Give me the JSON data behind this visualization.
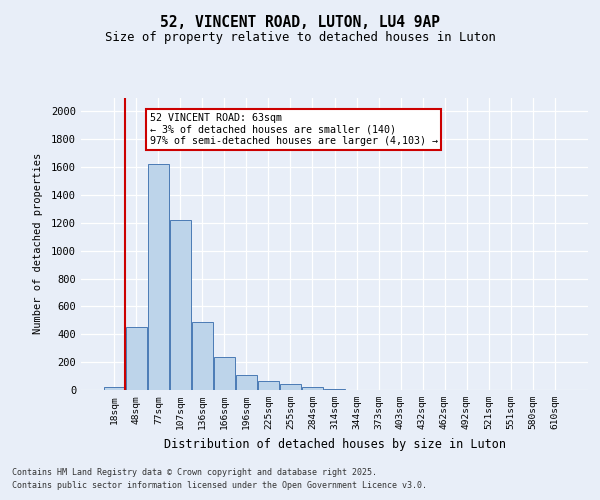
{
  "title_line1": "52, VINCENT ROAD, LUTON, LU4 9AP",
  "title_line2": "Size of property relative to detached houses in Luton",
  "xlabel": "Distribution of detached houses by size in Luton",
  "ylabel": "Number of detached properties",
  "categories": [
    "18sqm",
    "48sqm",
    "77sqm",
    "107sqm",
    "136sqm",
    "166sqm",
    "196sqm",
    "225sqm",
    "255sqm",
    "284sqm",
    "314sqm",
    "344sqm",
    "373sqm",
    "403sqm",
    "432sqm",
    "462sqm",
    "492sqm",
    "521sqm",
    "551sqm",
    "580sqm",
    "610sqm"
  ],
  "values": [
    25,
    450,
    1620,
    1220,
    490,
    240,
    110,
    65,
    40,
    20,
    10,
    0,
    0,
    0,
    0,
    0,
    0,
    0,
    0,
    0,
    0
  ],
  "bar_color": "#bdd4ea",
  "bar_edge_color": "#4a7ab5",
  "vline_color": "#cc0000",
  "vline_pos": 1.5,
  "annotation_text_line1": "52 VINCENT ROAD: 63sqm",
  "annotation_text_line2": "← 3% of detached houses are smaller (140)",
  "annotation_text_line3": "97% of semi-detached houses are larger (4,103) →",
  "annotation_box_color": "#cc0000",
  "ylim": [
    0,
    2100
  ],
  "yticks": [
    0,
    200,
    400,
    600,
    800,
    1000,
    1200,
    1400,
    1600,
    1800,
    2000
  ],
  "footer_line1": "Contains HM Land Registry data © Crown copyright and database right 2025.",
  "footer_line2": "Contains public sector information licensed under the Open Government Licence v3.0.",
  "background_color": "#e8eef8",
  "plot_bg_color": "#e8eef8",
  "grid_color": "#ffffff"
}
